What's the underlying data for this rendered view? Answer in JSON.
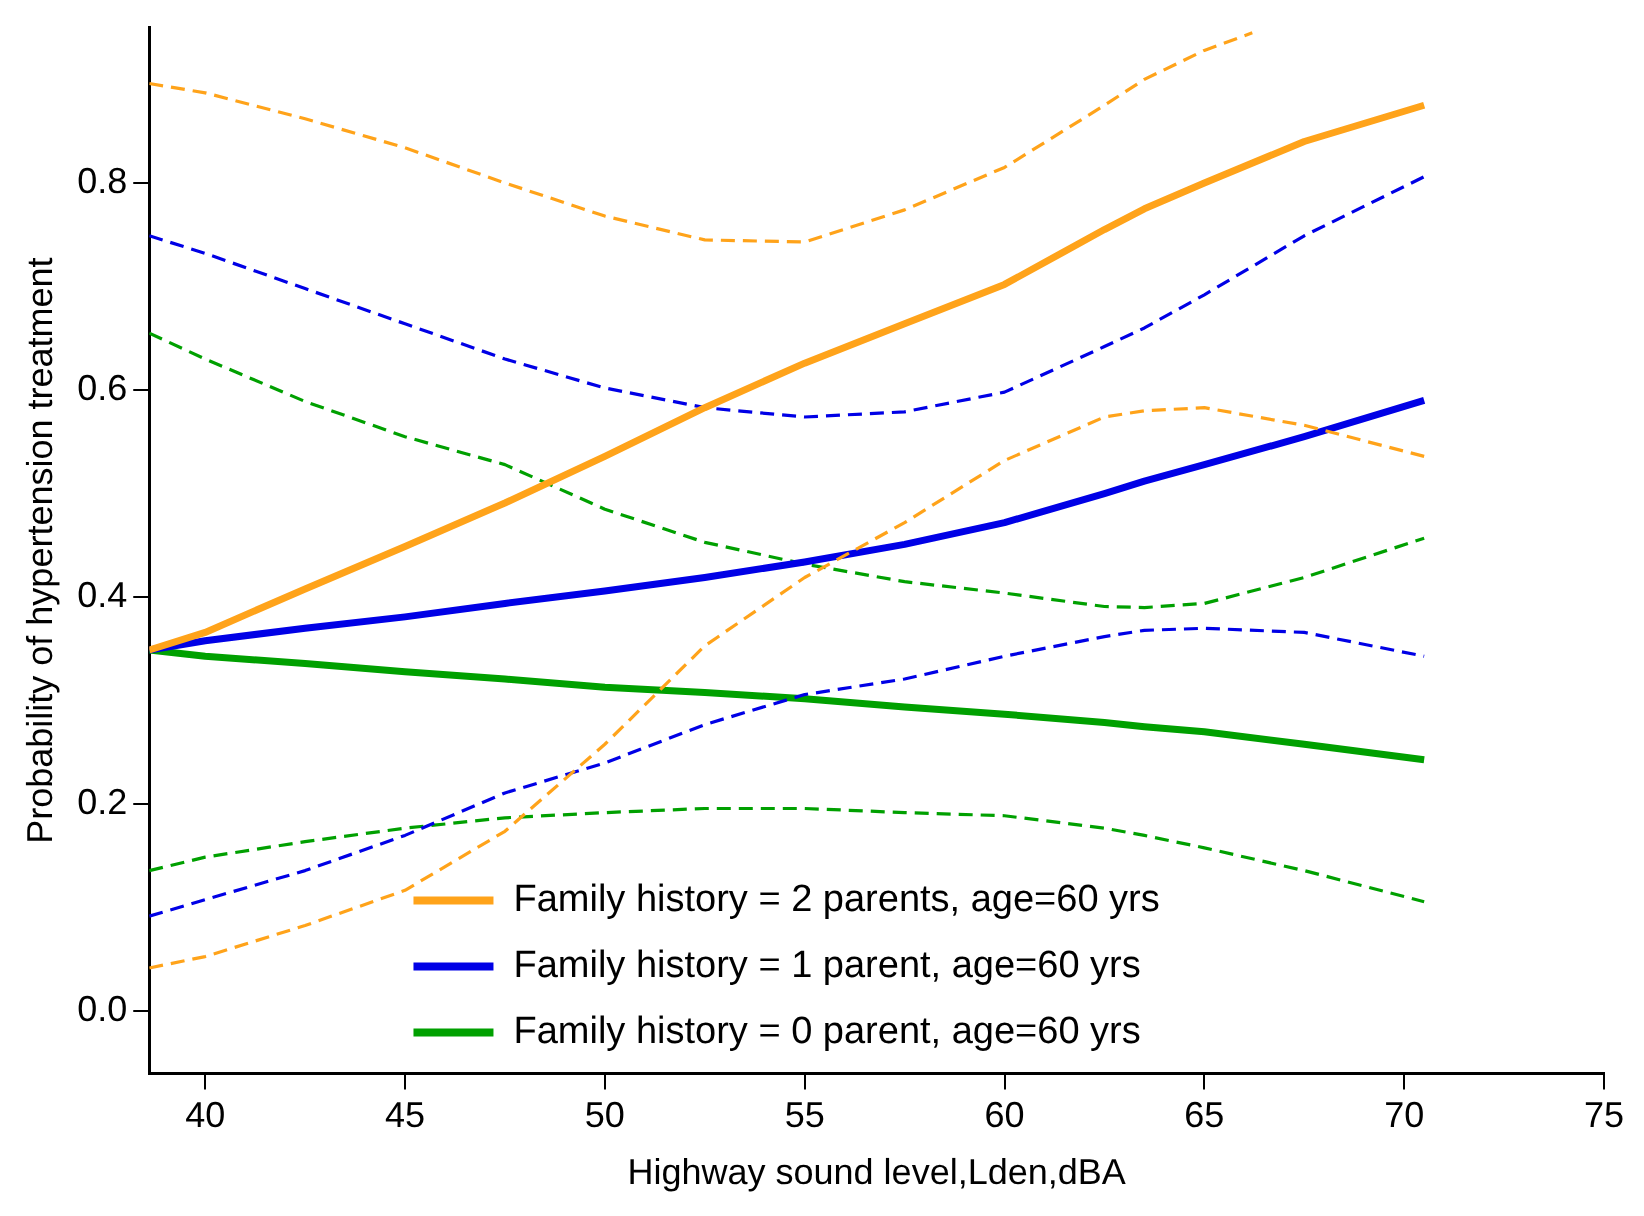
{
  "chart_data": {
    "type": "line",
    "xlabel": "Highway sound level,Lden,dBA",
    "ylabel": "Probability of hypertension treatment",
    "x": [
      38.6,
      40,
      42.5,
      45,
      47.5,
      50,
      52.5,
      55,
      57.5,
      60,
      62.5,
      63.5,
      65,
      67.5,
      70.5
    ],
    "xlim": [
      38.6,
      75
    ],
    "xticks": [
      40,
      45,
      50,
      55,
      60,
      65,
      70,
      75
    ],
    "ylim": [
      -0.06,
      0.95
    ],
    "yticks": [
      {
        "value": 0,
        "label": "0.0"
      },
      0.2,
      0.4,
      0.6,
      0.8
    ],
    "grid": false,
    "legend": "bottom",
    "marker": "none",
    "series": [
      {
        "name": "Family history = 2 parents, age=60 yrs",
        "color": "#ffa31a",
        "line_style": "solid",
        "values": [
          0.349,
          0.366,
          0.408,
          0.449,
          0.491,
          0.536,
          0.583,
          0.626,
          0.664,
          0.702,
          0.755,
          0.775,
          0.8,
          0.84,
          0.875
        ]
      },
      {
        "color": "#ffa31a",
        "line_style": "dashed",
        "values": [
          0.042,
          0.053,
          0.083,
          0.117,
          0.174,
          0.258,
          0.353,
          0.419,
          0.472,
          0.532,
          0.574,
          0.58,
          0.583,
          0.566,
          0.536
        ]
      },
      {
        "color": "#ffa31a",
        "line_style": "dashed",
        "x": [
          38.6,
          40,
          42.5,
          45,
          47.5,
          50,
          52.5,
          55,
          57.5,
          60,
          62.5,
          63.5,
          65,
          66.2
        ],
        "values": [
          0.896,
          0.887,
          0.862,
          0.834,
          0.8,
          0.768,
          0.745,
          0.743,
          0.774,
          0.815,
          0.875,
          0.9,
          0.928,
          0.945
        ]
      },
      {
        "name": "Family history = 1 parent, age=60 yrs",
        "color": "#0000e6",
        "line_style": "solid",
        "values": [
          0.349,
          0.358,
          0.37,
          0.381,
          0.394,
          0.406,
          0.419,
          0.434,
          0.451,
          0.472,
          0.5,
          0.512,
          0.528,
          0.555,
          0.59
        ]
      },
      {
        "color": "#0000e6",
        "line_style": "dashed",
        "values": [
          0.092,
          0.108,
          0.136,
          0.17,
          0.211,
          0.24,
          0.277,
          0.306,
          0.321,
          0.343,
          0.362,
          0.368,
          0.37,
          0.366,
          0.343
        ]
      },
      {
        "color": "#0000e6",
        "line_style": "dashed",
        "values": [
          0.749,
          0.732,
          0.698,
          0.664,
          0.63,
          0.602,
          0.583,
          0.574,
          0.579,
          0.598,
          0.642,
          0.66,
          0.692,
          0.749,
          0.806
        ]
      },
      {
        "name": "Family history = 0 parent, age=60 yrs",
        "color": "#00a000",
        "line_style": "solid",
        "values": [
          0.349,
          0.343,
          0.336,
          0.328,
          0.321,
          0.313,
          0.308,
          0.302,
          0.294,
          0.287,
          0.279,
          0.275,
          0.27,
          0.258,
          0.243
        ]
      },
      {
        "color": "#00a000",
        "line_style": "dashed",
        "values": [
          0.136,
          0.149,
          0.164,
          0.177,
          0.187,
          0.192,
          0.196,
          0.196,
          0.192,
          0.189,
          0.177,
          0.17,
          0.158,
          0.136,
          0.106
        ]
      },
      {
        "color": "#00a000",
        "line_style": "dashed",
        "values": [
          0.655,
          0.63,
          0.589,
          0.555,
          0.528,
          0.485,
          0.453,
          0.432,
          0.415,
          0.404,
          0.391,
          0.39,
          0.394,
          0.419,
          0.457
        ]
      }
    ]
  }
}
